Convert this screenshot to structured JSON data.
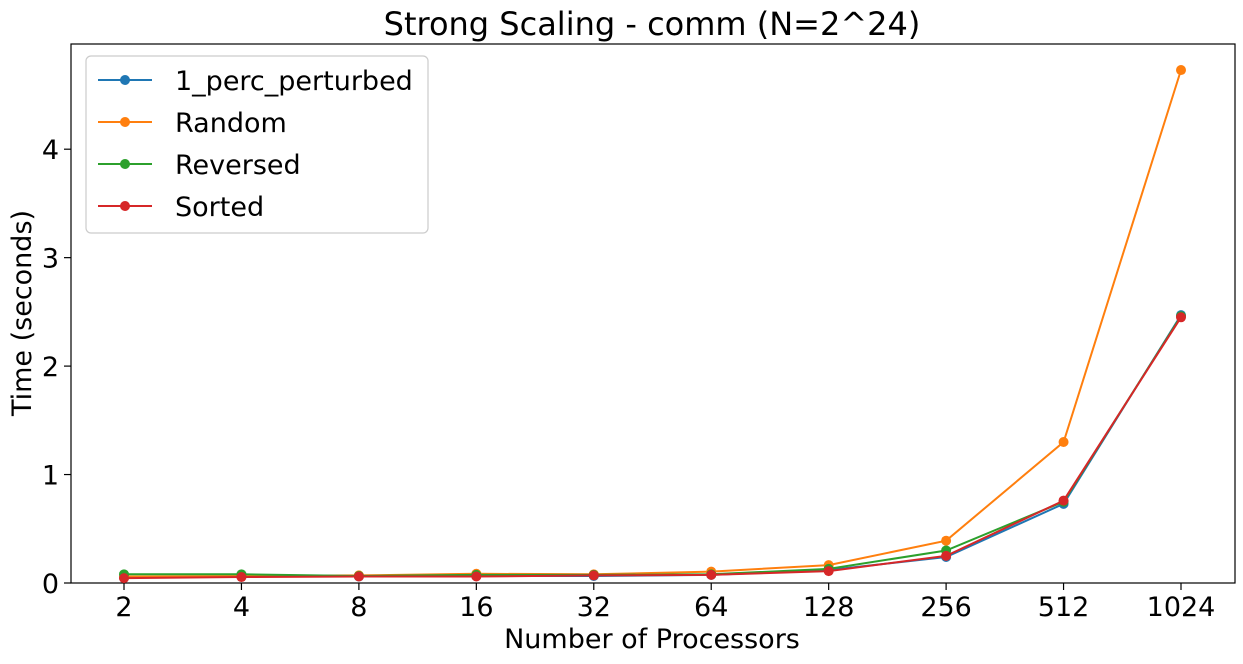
{
  "chart_data": {
    "type": "line",
    "title": "Strong Scaling - comm (N=2^24)",
    "xlabel": "Number of Processors",
    "ylabel": "Time (seconds)",
    "x": [
      "2",
      "4",
      "8",
      "16",
      "32",
      "64",
      "128",
      "256",
      "512",
      "1024"
    ],
    "yticks": [
      0,
      1,
      2,
      3,
      4
    ],
    "ylim": [
      0,
      4.97
    ],
    "grid": false,
    "legend_position": "upper-left",
    "series": [
      {
        "name": "1_perc_perturbed",
        "color": "#1f77b4",
        "values": [
          0.05,
          0.06,
          0.06,
          0.065,
          0.065,
          0.075,
          0.12,
          0.24,
          0.73,
          2.47
        ]
      },
      {
        "name": "Random",
        "color": "#ff7f0e",
        "values": [
          0.06,
          0.065,
          0.07,
          0.085,
          0.08,
          0.105,
          0.165,
          0.39,
          1.3,
          4.73
        ]
      },
      {
        "name": "Reversed",
        "color": "#2ca02c",
        "values": [
          0.08,
          0.08,
          0.065,
          0.075,
          0.075,
          0.08,
          0.13,
          0.3,
          0.75,
          2.46
        ]
      },
      {
        "name": "Sorted",
        "color": "#d62728",
        "values": [
          0.045,
          0.055,
          0.06,
          0.06,
          0.07,
          0.075,
          0.11,
          0.25,
          0.76,
          2.45
        ]
      }
    ]
  }
}
